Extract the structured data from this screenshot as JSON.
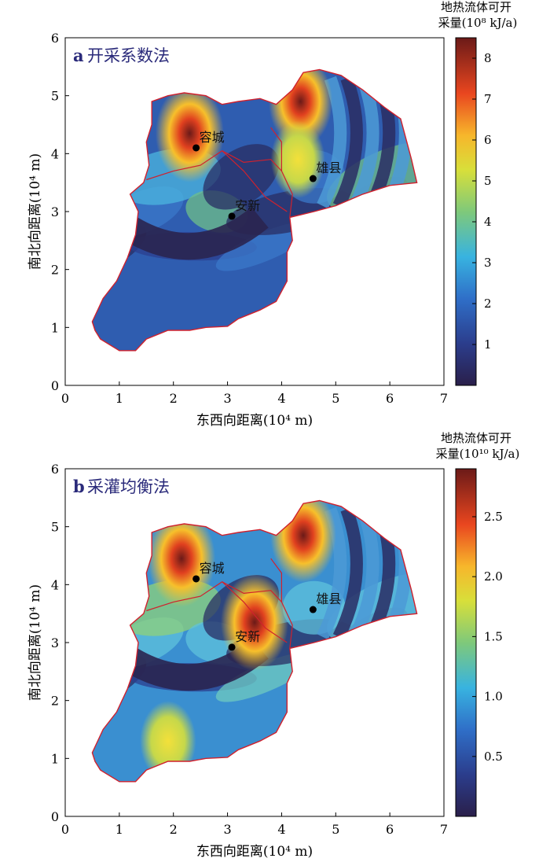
{
  "chart_data": [
    {
      "type": "heatmap",
      "panel_letter": "a",
      "title": "开采系数法",
      "xlabel": "东西向距离(10⁴ m)",
      "ylabel": "南北向距离(10⁴ m)",
      "xlim": [
        0,
        7
      ],
      "ylim": [
        0,
        6
      ],
      "x_ticks": [
        0,
        1,
        2,
        3,
        4,
        5,
        6,
        7
      ],
      "y_ticks": [
        0,
        1,
        2,
        3,
        4,
        5,
        6
      ],
      "colorbar_title_line1": "地热流体可开",
      "colorbar_title_line2": "采量(10⁸ kJ/a)",
      "colorbar_range": [
        0,
        8.5
      ],
      "colorbar_ticks": [
        "1",
        "2",
        "3",
        "4",
        "5",
        "6",
        "7",
        "8"
      ],
      "colorbar_tick_values": [
        1,
        2,
        3,
        4,
        5,
        6,
        7,
        8
      ],
      "cities": [
        {
          "name": "容城",
          "x": 2.42,
          "y": 4.1
        },
        {
          "name": "雄县",
          "x": 4.58,
          "y": 3.57
        },
        {
          "name": "安新",
          "x": 3.08,
          "y": 2.92
        }
      ],
      "hotspots": [
        {
          "x": 2.3,
          "y": 4.35,
          "level": 0.92
        },
        {
          "x": 4.35,
          "y": 4.9,
          "level": 0.8
        },
        {
          "x": 4.3,
          "y": 3.9,
          "level": 0.55
        }
      ]
    },
    {
      "type": "heatmap",
      "panel_letter": "b",
      "title": "采灌均衡法",
      "xlabel": "东西向距离(10⁴ m)",
      "ylabel": "南北向距离(10⁴ m)",
      "xlim": [
        0,
        7
      ],
      "ylim": [
        0,
        6
      ],
      "x_ticks": [
        0,
        1,
        2,
        3,
        4,
        5,
        6,
        7
      ],
      "y_ticks": [
        0,
        1,
        2,
        3,
        4,
        5,
        6
      ],
      "colorbar_title_line1": "地热流体可开",
      "colorbar_title_line2": "采量(10¹⁰ kJ/a)",
      "colorbar_range": [
        0,
        2.9
      ],
      "colorbar_ticks": [
        "0.5",
        "1.0",
        "1.5",
        "2.0",
        "2.5"
      ],
      "colorbar_tick_values": [
        0.5,
        1.0,
        1.5,
        2.0,
        2.5
      ],
      "cities": [
        {
          "name": "容城",
          "x": 2.42,
          "y": 4.1
        },
        {
          "name": "雄县",
          "x": 4.58,
          "y": 3.57
        },
        {
          "name": "安新",
          "x": 3.08,
          "y": 2.92
        }
      ],
      "hotspots": [
        {
          "x": 2.15,
          "y": 4.45,
          "level": 0.9
        },
        {
          "x": 3.5,
          "y": 3.35,
          "level": 0.9
        },
        {
          "x": 4.4,
          "y": 4.85,
          "level": 0.85
        },
        {
          "x": 1.9,
          "y": 1.3,
          "level": 0.6
        }
      ]
    }
  ]
}
